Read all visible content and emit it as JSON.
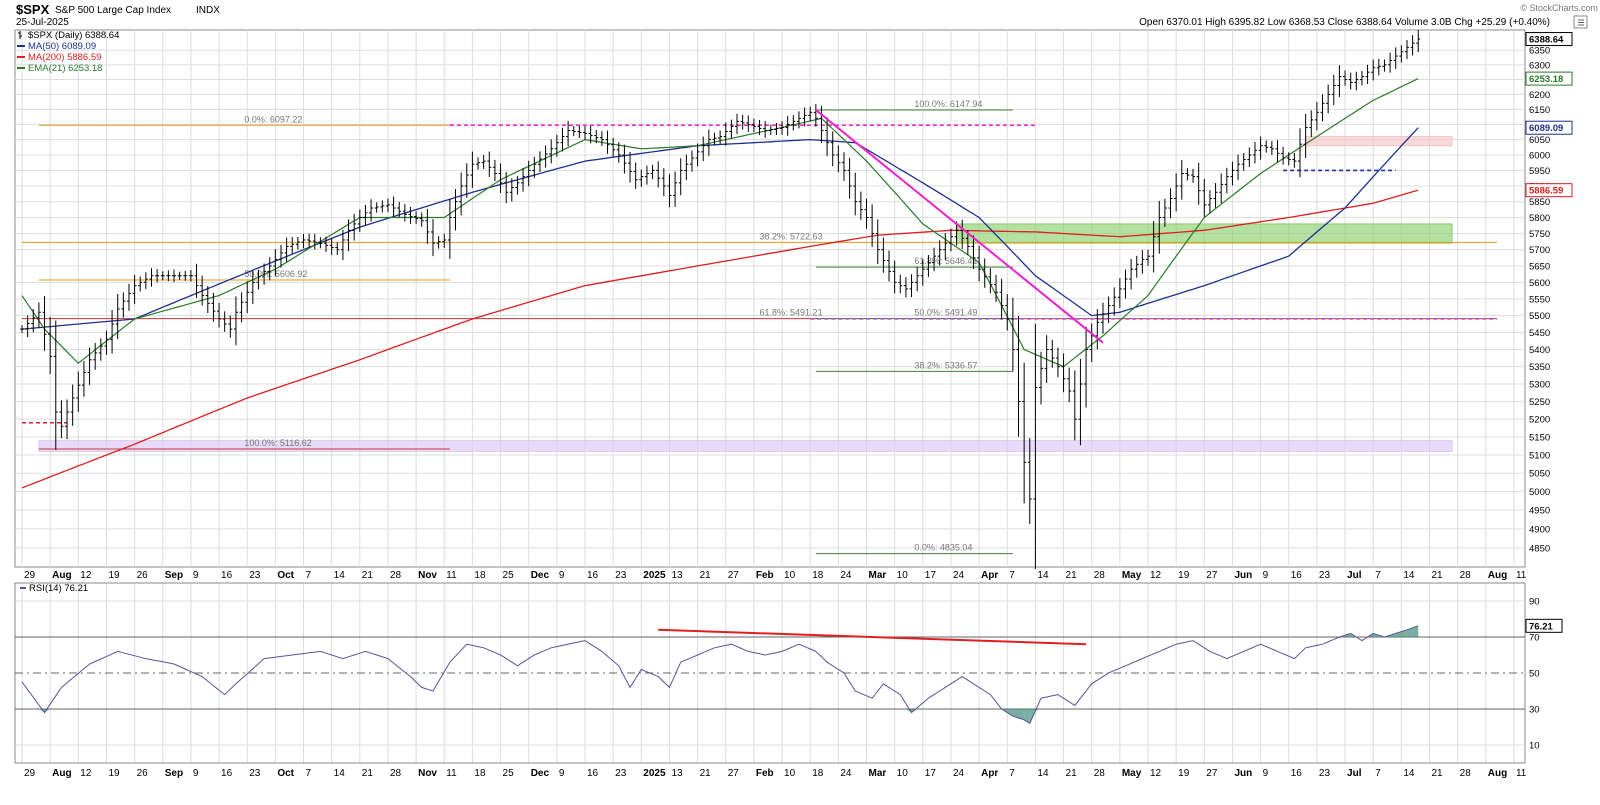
{
  "header": {
    "symbol": "$SPX",
    "name": "S&P 500 Large Cap Index",
    "exchange": "INDX",
    "date": "25-Jul-2025",
    "ohlc": "Open 6370.01   High 6395.82   Low 6368.53   Close 6388.64   Volume 3.0B   Chg +25.29 (+0.40%)",
    "watermark": "© StockCharts.com"
  },
  "colors": {
    "price": "#000000",
    "ma50": "#1f2f8f",
    "ma200": "#dd1f1f",
    "ema21": "#2a7a2a",
    "trendline": "#ee22cc",
    "fib": "#e69a1a",
    "fib2": "#3f7f3f",
    "rsi": "#555599",
    "grid": "#dddddd"
  },
  "legend": [
    {
      "label": "$SPX (Daily) 6388.64",
      "color": "#000000",
      "icon": "bar-icon"
    },
    {
      "label": "MA(50) 6089.09",
      "color": "#1f2f8f",
      "icon": "line-icon"
    },
    {
      "label": "MA(200) 5886.59",
      "color": "#dd1f1f",
      "icon": "line-icon"
    },
    {
      "label": "EMA(21) 6253.18",
      "color": "#2a7a2a",
      "icon": "line-icon"
    }
  ],
  "rsi_legend": "RSI(14) 76.21",
  "chart_data": [
    {
      "type": "line",
      "title": "$SPX (Daily) 6388.64",
      "scale": "log",
      "grid": true,
      "ylim": [
        4800,
        6420
      ],
      "price_ticks": [
        4850,
        4900,
        4950,
        5000,
        5050,
        5100,
        5150,
        5200,
        5250,
        5300,
        5350,
        5400,
        5450,
        5500,
        5550,
        5600,
        5650,
        5700,
        5750,
        5800,
        5850,
        5900,
        5950,
        6000,
        6050,
        6100,
        6150,
        6200,
        6250,
        6300,
        6350
      ],
      "x_tick_labels": [
        "29",
        "Aug",
        "12",
        "19",
        "26",
        "Sep",
        "9",
        "16",
        "23",
        "Oct",
        "7",
        "14",
        "21",
        "28",
        "Nov",
        "11",
        "18",
        "25",
        "Dec",
        "9",
        "16",
        "23",
        "2025",
        "13",
        "21",
        "27",
        "Feb",
        "10",
        "18",
        "24",
        "Mar",
        "10",
        "17",
        "24",
        "Apr",
        "7",
        "14",
        "21",
        "28",
        "May",
        "12",
        "19",
        "27",
        "Jun",
        "9",
        "16",
        "23",
        "Jul",
        "7",
        "14",
        "21",
        "28",
        "Aug",
        "11"
      ],
      "value_tags": [
        {
          "label": "6388.64",
          "value": 6388.64,
          "color": "#000000"
        },
        {
          "label": "6253.18",
          "value": 6253.18,
          "color": "#2a7a2a"
        },
        {
          "label": "6089.09",
          "value": 6089.09,
          "color": "#1f2f8f"
        },
        {
          "label": "5886.59",
          "value": 5886.59,
          "color": "#dd1f1f"
        }
      ],
      "close_keypoints": [
        [
          0,
          5460
        ],
        [
          3,
          5510
        ],
        [
          5,
          5380
        ],
        [
          6,
          5220
        ],
        [
          7,
          5180
        ],
        [
          9,
          5260
        ],
        [
          12,
          5370
        ],
        [
          15,
          5430
        ],
        [
          17,
          5520
        ],
        [
          20,
          5590
        ],
        [
          23,
          5620
        ],
        [
          27,
          5620
        ],
        [
          30,
          5620
        ],
        [
          32,
          5560
        ],
        [
          35,
          5490
        ],
        [
          37,
          5460
        ],
        [
          38,
          5510
        ],
        [
          41,
          5600
        ],
        [
          44,
          5650
        ],
        [
          47,
          5710
        ],
        [
          50,
          5730
        ],
        [
          53,
          5720
        ],
        [
          56,
          5700
        ],
        [
          58,
          5760
        ],
        [
          60,
          5800
        ],
        [
          62,
          5830
        ],
        [
          65,
          5840
        ],
        [
          68,
          5810
        ],
        [
          71,
          5790
        ],
        [
          73,
          5720
        ],
        [
          75,
          5730
        ],
        [
          76,
          5800
        ],
        [
          78,
          5900
        ],
        [
          80,
          5970
        ],
        [
          82,
          5980
        ],
        [
          84,
          5940
        ],
        [
          86,
          5880
        ],
        [
          88,
          5910
        ],
        [
          91,
          5970
        ],
        [
          94,
          6020
        ],
        [
          97,
          6080
        ],
        [
          100,
          6070
        ],
        [
          103,
          6050
        ],
        [
          106,
          6000
        ],
        [
          109,
          5920
        ],
        [
          112,
          5950
        ],
        [
          114,
          5900
        ],
        [
          115,
          5870
        ],
        [
          117,
          5950
        ],
        [
          119,
          5990
        ],
        [
          122,
          6050
        ],
        [
          124,
          6060
        ],
        [
          127,
          6110
        ],
        [
          129,
          6100
        ],
        [
          132,
          6080
        ],
        [
          135,
          6090
        ],
        [
          138,
          6120
        ],
        [
          140,
          6140
        ],
        [
          141,
          6120
        ],
        [
          144,
          6000
        ],
        [
          146,
          5950
        ],
        [
          148,
          5850
        ],
        [
          150,
          5800
        ],
        [
          152,
          5700
        ],
        [
          155,
          5600
        ],
        [
          157,
          5580
        ],
        [
          160,
          5640
        ],
        [
          163,
          5700
        ],
        [
          166,
          5760
        ],
        [
          168,
          5710
        ],
        [
          170,
          5640
        ],
        [
          173,
          5570
        ],
        [
          175,
          5490
        ],
        [
          176,
          5400
        ],
        [
          177,
          5250
        ],
        [
          178,
          5080
        ],
        [
          179,
          4980
        ],
        [
          180,
          5290
        ],
        [
          182,
          5400
        ],
        [
          184,
          5350
        ],
        [
          186,
          5280
        ],
        [
          187,
          5200
        ],
        [
          189,
          5400
        ],
        [
          191,
          5480
        ],
        [
          193,
          5530
        ],
        [
          195,
          5580
        ],
        [
          197,
          5640
        ],
        [
          199,
          5670
        ],
        [
          200,
          5680
        ],
        [
          202,
          5800
        ],
        [
          204,
          5860
        ],
        [
          206,
          5940
        ],
        [
          208,
          5930
        ],
        [
          210,
          5840
        ],
        [
          212,
          5880
        ],
        [
          214,
          5930
        ],
        [
          216,
          5970
        ],
        [
          218,
          6000
        ],
        [
          220,
          6030
        ],
        [
          222,
          6020
        ],
        [
          224,
          5990
        ],
        [
          226,
          5980
        ],
        [
          228,
          6090
        ],
        [
          230,
          6140
        ],
        [
          232,
          6200
        ],
        [
          234,
          6260
        ],
        [
          236,
          6240
        ],
        [
          238,
          6260
        ],
        [
          240,
          6290
        ],
        [
          242,
          6300
        ],
        [
          244,
          6330
        ],
        [
          246,
          6360
        ],
        [
          248,
          6388.64
        ]
      ],
      "ma50_keypoints": [
        [
          0,
          5460
        ],
        [
          20,
          5490
        ],
        [
          40,
          5630
        ],
        [
          60,
          5770
        ],
        [
          80,
          5880
        ],
        [
          100,
          5980
        ],
        [
          120,
          6030
        ],
        [
          140,
          6050
        ],
        [
          148,
          6040
        ],
        [
          160,
          5910
        ],
        [
          170,
          5800
        ],
        [
          180,
          5620
        ],
        [
          190,
          5500
        ],
        [
          195,
          5510
        ],
        [
          210,
          5590
        ],
        [
          225,
          5680
        ],
        [
          235,
          5830
        ],
        [
          248,
          6089.09
        ]
      ],
      "ma200_keypoints": [
        [
          0,
          5010
        ],
        [
          20,
          5130
        ],
        [
          40,
          5260
        ],
        [
          60,
          5370
        ],
        [
          80,
          5490
        ],
        [
          100,
          5590
        ],
        [
          120,
          5650
        ],
        [
          140,
          5710
        ],
        [
          152,
          5745
        ],
        [
          165,
          5760
        ],
        [
          180,
          5755
        ],
        [
          195,
          5740
        ],
        [
          210,
          5760
        ],
        [
          225,
          5800
        ],
        [
          240,
          5845
        ],
        [
          248,
          5886.59
        ]
      ],
      "ema21_keypoints": [
        [
          0,
          5560
        ],
        [
          4,
          5460
        ],
        [
          10,
          5360
        ],
        [
          20,
          5490
        ],
        [
          35,
          5560
        ],
        [
          45,
          5640
        ],
        [
          60,
          5800
        ],
        [
          75,
          5800
        ],
        [
          85,
          5920
        ],
        [
          100,
          6050
        ],
        [
          110,
          6020
        ],
        [
          120,
          6030
        ],
        [
          135,
          6090
        ],
        [
          142,
          6120
        ],
        [
          150,
          5980
        ],
        [
          160,
          5780
        ],
        [
          170,
          5660
        ],
        [
          178,
          5400
        ],
        [
          185,
          5350
        ],
        [
          192,
          5440
        ],
        [
          200,
          5560
        ],
        [
          210,
          5800
        ],
        [
          220,
          5940
        ],
        [
          230,
          6060
        ],
        [
          240,
          6180
        ],
        [
          248,
          6253.18
        ]
      ],
      "fibonacci": [
        {
          "label": "0.0%: 6097.22",
          "value": 6097.22,
          "start": 3,
          "end": 76,
          "color": "#e69a1a"
        },
        {
          "label": "38.2%: 5722.63",
          "value": 5722.63,
          "start": 0,
          "end": 262,
          "color": "#e69a1a"
        },
        {
          "label": "50.0%: 5606.92",
          "value": 5606.92,
          "start": 3,
          "end": 76,
          "color": "#e69a1a"
        },
        {
          "label": "61.8%: 5491.21",
          "value": 5491.21,
          "start": 0,
          "end": 262,
          "color": "#cc3333"
        },
        {
          "label": "100.0%: 5116.62",
          "value": 5116.62,
          "start": 3,
          "end": 76,
          "color": "#cc3333"
        },
        {
          "label": "100.0%: 6147.94",
          "value": 6147.94,
          "start": 141,
          "end": 176,
          "color": "#3f7f3f"
        },
        {
          "label": "61.8%: 5646.41",
          "value": 5646.41,
          "start": 141,
          "end": 176,
          "color": "#3f7f3f"
        },
        {
          "label": "50.0%: 5491.49",
          "value": 5491.49,
          "start": 141,
          "end": 176,
          "color": "#3f7f3f"
        },
        {
          "label": "38.2%: 5336.57",
          "value": 5336.57,
          "start": 141,
          "end": 176,
          "color": "#3f7f3f"
        },
        {
          "label": "0.0%: 4835.04",
          "value": 4835.04,
          "start": 141,
          "end": 176,
          "color": "#3f7f3f"
        }
      ],
      "zones": [
        {
          "label": "Support zone 5720-5780",
          "from": 5720,
          "to": 5780,
          "start": 166,
          "end": 254,
          "color": "#8ccf6e"
        },
        {
          "label": "Zone 6030-6060",
          "from": 6030,
          "to": 6060,
          "start": 228,
          "end": 254,
          "color": "#f6c4c4"
        },
        {
          "label": "Zone 5110-5140",
          "from": 5110,
          "to": 5140,
          "start": 3,
          "end": 254,
          "color": "#ddc8f4"
        }
      ],
      "trendline": {
        "from": [
          141,
          6147.94
        ],
        "to": [
          192,
          5420
        ]
      },
      "dashed_levels": [
        {
          "value": 6097.22,
          "start": 76,
          "end": 180,
          "color": "#ee22cc"
        },
        {
          "value": 5950,
          "start": 224,
          "end": 244,
          "color": "#1f2fa8"
        },
        {
          "value": 5490,
          "start": 140,
          "end": 262,
          "color": "#b05cd8"
        },
        {
          "value": 5190,
          "start": 0,
          "end": 8,
          "color": "#dd2222"
        }
      ]
    },
    {
      "type": "line",
      "title": "RSI(14) 76.21",
      "ylim": [
        0,
        100
      ],
      "ticks": [
        10,
        30,
        50,
        70,
        90
      ],
      "value_tag": {
        "label": "76.21",
        "value": 76.21
      },
      "rsi_keypoints": [
        [
          0,
          45
        ],
        [
          4,
          28
        ],
        [
          7,
          42
        ],
        [
          12,
          55
        ],
        [
          17,
          62
        ],
        [
          22,
          58
        ],
        [
          27,
          55
        ],
        [
          32,
          48
        ],
        [
          36,
          38
        ],
        [
          38,
          44
        ],
        [
          43,
          58
        ],
        [
          48,
          60
        ],
        [
          53,
          62
        ],
        [
          57,
          58
        ],
        [
          61,
          62
        ],
        [
          65,
          58
        ],
        [
          69,
          48
        ],
        [
          71,
          42
        ],
        [
          73,
          40
        ],
        [
          76,
          56
        ],
        [
          79,
          66
        ],
        [
          82,
          64
        ],
        [
          85,
          60
        ],
        [
          88,
          54
        ],
        [
          91,
          60
        ],
        [
          94,
          64
        ],
        [
          97,
          66
        ],
        [
          100,
          68
        ],
        [
          103,
          62
        ],
        [
          106,
          54
        ],
        [
          108,
          42
        ],
        [
          110,
          52
        ],
        [
          113,
          48
        ],
        [
          115,
          42
        ],
        [
          117,
          56
        ],
        [
          120,
          60
        ],
        [
          123,
          64
        ],
        [
          126,
          66
        ],
        [
          129,
          62
        ],
        [
          132,
          60
        ],
        [
          135,
          62
        ],
        [
          138,
          66
        ],
        [
          141,
          62
        ],
        [
          143,
          56
        ],
        [
          146,
          50
        ],
        [
          148,
          40
        ],
        [
          151,
          36
        ],
        [
          153,
          44
        ],
        [
          156,
          38
        ],
        [
          158,
          28
        ],
        [
          161,
          36
        ],
        [
          164,
          42
        ],
        [
          167,
          48
        ],
        [
          169,
          44
        ],
        [
          172,
          38
        ],
        [
          174,
          30
        ],
        [
          176,
          26
        ],
        [
          178,
          24
        ],
        [
          179,
          22
        ],
        [
          181,
          36
        ],
        [
          184,
          38
        ],
        [
          187,
          32
        ],
        [
          190,
          44
        ],
        [
          193,
          50
        ],
        [
          196,
          54
        ],
        [
          199,
          58
        ],
        [
          202,
          62
        ],
        [
          205,
          66
        ],
        [
          208,
          68
        ],
        [
          211,
          62
        ],
        [
          214,
          58
        ],
        [
          217,
          62
        ],
        [
          220,
          66
        ],
        [
          223,
          62
        ],
        [
          226,
          58
        ],
        [
          228,
          64
        ],
        [
          231,
          66
        ],
        [
          234,
          70
        ],
        [
          236,
          72
        ],
        [
          238,
          68
        ],
        [
          240,
          72
        ],
        [
          242,
          70
        ],
        [
          244,
          72
        ],
        [
          246,
          74
        ],
        [
          248,
          76.21
        ]
      ],
      "divergence_line": {
        "from": [
          113,
          74
        ],
        "to": [
          189,
          66
        ]
      }
    }
  ]
}
